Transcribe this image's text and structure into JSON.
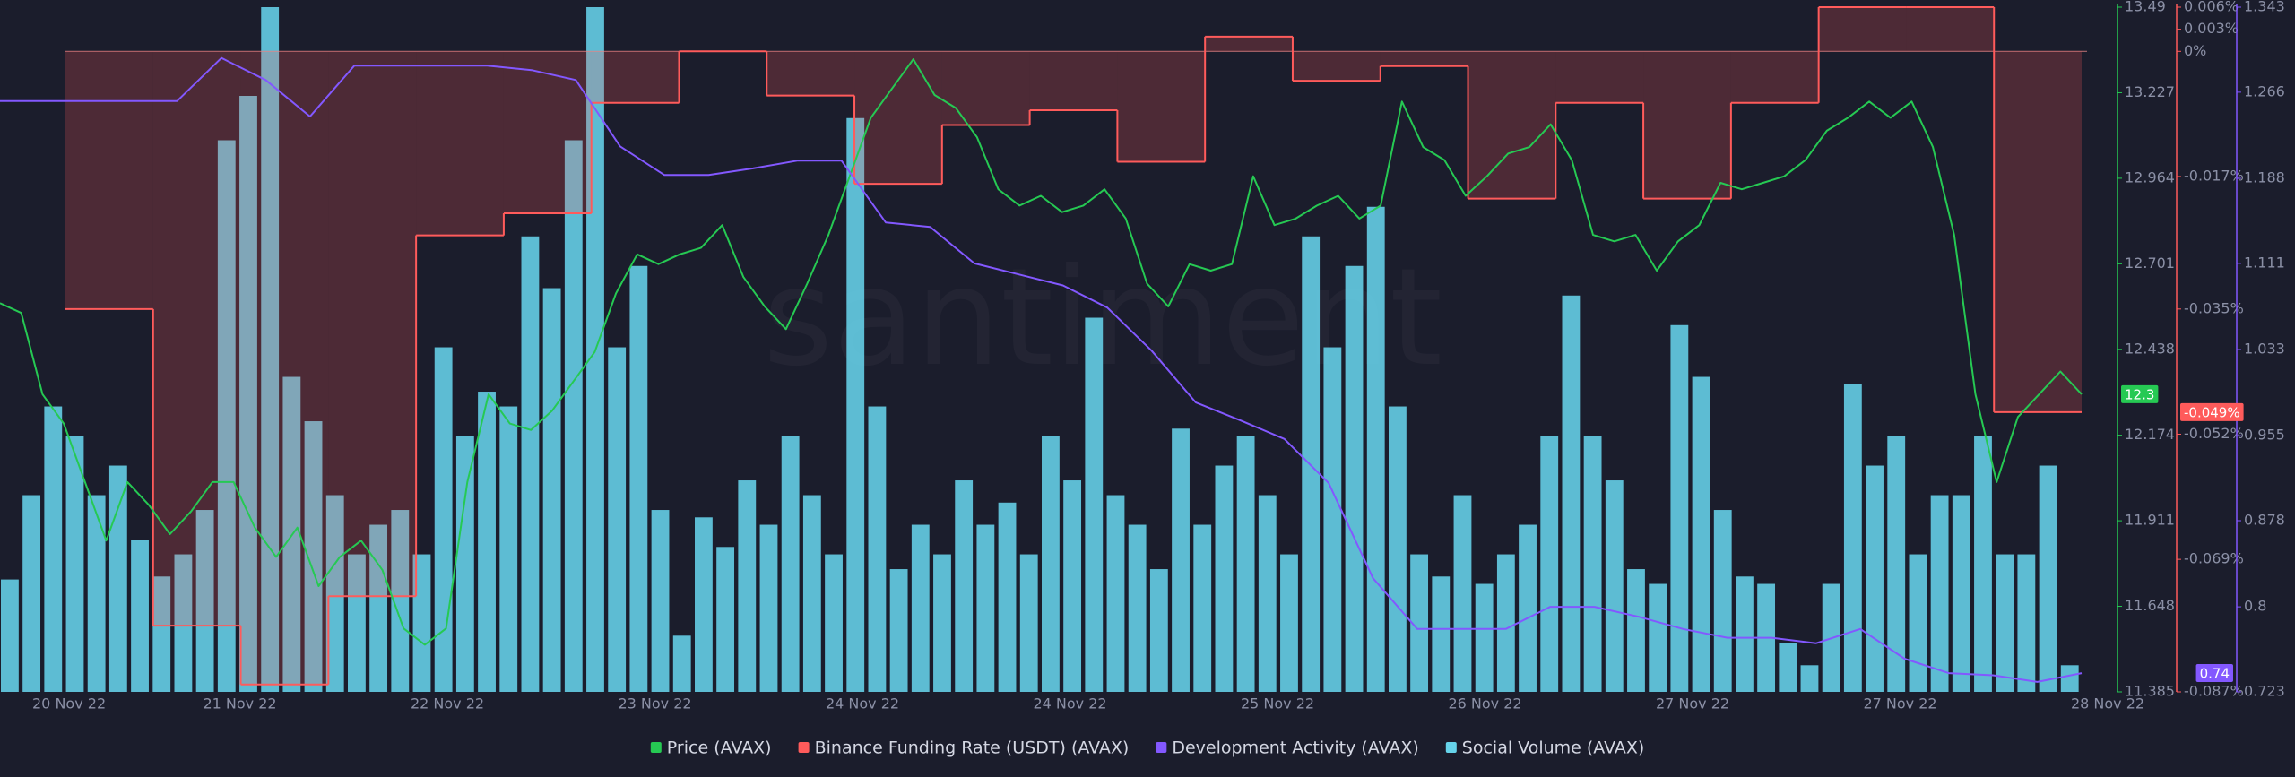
{
  "chart_data": {
    "type": "combo",
    "watermark": "santiment",
    "x_labels": [
      "20 Nov 22",
      "21 Nov 22",
      "22 Nov 22",
      "23 Nov 22",
      "24 Nov 22",
      "24 Nov 22",
      "25 Nov 22",
      "26 Nov 22",
      "27 Nov 22",
      "27 Nov 22",
      "28 Nov 22"
    ],
    "ylim": [
      11.385,
      13.49
    ],
    "yticks": [
      13.49,
      13.227,
      12.964,
      12.701,
      12.438,
      12.174,
      11.911,
      11.648,
      11.385
    ],
    "y2lim": [
      -0.087,
      0.006
    ],
    "y2ticks": [
      {
        "value": 0.006,
        "label": "0.006%"
      },
      {
        "value": 0.003,
        "label": "0.003%"
      },
      {
        "value": 0,
        "label": "0%"
      },
      {
        "value": -0.017,
        "label": "-0.017%"
      },
      {
        "value": -0.035,
        "label": "-0.035%"
      },
      {
        "value": -0.052,
        "label": "-0.052%"
      },
      {
        "value": -0.069,
        "label": "-0.069%"
      },
      {
        "value": -0.087,
        "label": "-0.087%"
      }
    ],
    "y3lim": [
      0.723,
      1.343
    ],
    "y3ticks": [
      1.343,
      1.266,
      1.188,
      1.111,
      1.033,
      0.955,
      0.878,
      0.8,
      0.723
    ],
    "series": [
      {
        "name": "Price (AVAX)",
        "type": "line",
        "axis": "y",
        "color": "#26c953",
        "last_label": "12.3",
        "values": [
          12.58,
          12.55,
          12.3,
          12.21,
          12.03,
          11.85,
          12.03,
          11.96,
          11.87,
          11.94,
          12.03,
          12.03,
          11.89,
          11.8,
          11.89,
          11.71,
          11.8,
          11.85,
          11.76,
          11.58,
          11.53,
          11.58,
          12.03,
          12.3,
          12.21,
          12.19,
          12.25,
          12.34,
          12.43,
          12.61,
          12.73,
          12.7,
          12.73,
          12.75,
          12.82,
          12.66,
          12.57,
          12.5,
          12.64,
          12.79,
          12.97,
          13.15,
          13.24,
          13.33,
          13.22,
          13.18,
          13.09,
          12.93,
          12.88,
          12.91,
          12.86,
          12.88,
          12.93,
          12.84,
          12.64,
          12.57,
          12.7,
          12.68,
          12.7,
          12.97,
          12.82,
          12.84,
          12.88,
          12.91,
          12.84,
          12.88,
          13.2,
          13.06,
          13.02,
          12.91,
          12.97,
          13.04,
          13.06,
          13.13,
          13.02,
          12.79,
          12.77,
          12.79,
          12.68,
          12.77,
          12.82,
          12.95,
          12.93,
          12.95,
          12.97,
          13.02,
          13.11,
          13.15,
          13.2,
          13.15,
          13.2,
          13.06,
          12.79,
          12.3,
          12.03,
          12.23,
          12.3,
          12.37,
          12.3
        ]
      },
      {
        "name": "Binance Funding Rate (USDT) (AVAX)",
        "type": "step",
        "axis": "y2",
        "color": "#ff5b5b",
        "last_label": "-0.049%",
        "values": [
          -0.035,
          -0.078,
          -0.086,
          -0.074,
          -0.025,
          -0.022,
          -0.007,
          0,
          -0.006,
          -0.018,
          -0.01,
          -0.008,
          -0.015,
          0.002,
          -0.004,
          -0.002,
          -0.02,
          -0.007,
          -0.02,
          -0.007,
          0.006,
          0.006,
          -0.049
        ]
      },
      {
        "name": "Development Activity (AVAX)",
        "type": "line",
        "axis": "y3",
        "color": "#8358ff",
        "last_label": "0.74",
        "values": [
          1.258,
          1.258,
          1.258,
          1.258,
          1.258,
          1.297,
          1.277,
          1.244,
          1.29,
          1.29,
          1.29,
          1.29,
          1.286,
          1.277,
          1.217,
          1.191,
          1.191,
          1.197,
          1.204,
          1.204,
          1.148,
          1.144,
          1.111,
          1.101,
          1.091,
          1.071,
          1.032,
          0.985,
          0.969,
          0.952,
          0.912,
          0.826,
          0.78,
          0.78,
          0.78,
          0.8,
          0.8,
          0.791,
          0.78,
          0.772,
          0.772,
          0.767,
          0.78,
          0.753,
          0.74,
          0.738,
          0.732,
          0.74
        ]
      },
      {
        "name": "Social Volume (AVAX)",
        "type": "bar",
        "color": "#66d3ea",
        "values": [
          76,
          133,
          193,
          173,
          133,
          153,
          103,
          78,
          93,
          123,
          373,
          403,
          463,
          213,
          183,
          133,
          93,
          113,
          123,
          93,
          233,
          173,
          203,
          193,
          308,
          273,
          373,
          463,
          233,
          288,
          123,
          38,
          118,
          98,
          143,
          113,
          173,
          133,
          93,
          388,
          193,
          83,
          113,
          93,
          143,
          113,
          128,
          93,
          173,
          143,
          253,
          133,
          113,
          83,
          178,
          113,
          153,
          173,
          133,
          93,
          308,
          233,
          288,
          328,
          193,
          93,
          78,
          133,
          73,
          93,
          113,
          173,
          268,
          173,
          143,
          83,
          73,
          248,
          213,
          123,
          78,
          73,
          33,
          18,
          73,
          208,
          153,
          173,
          93,
          133,
          133,
          173,
          93,
          93,
          153,
          18
        ]
      }
    ]
  }
}
